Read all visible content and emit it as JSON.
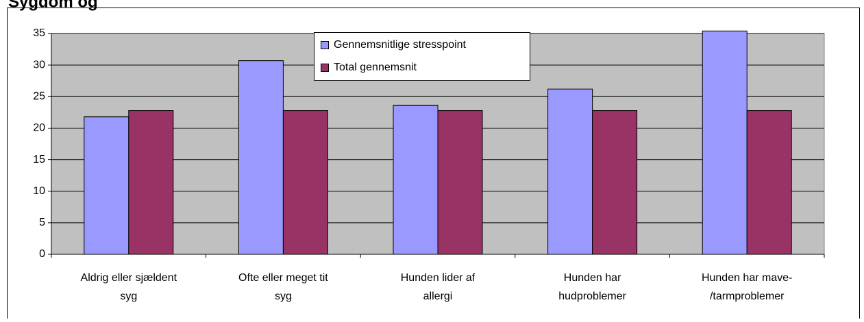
{
  "chart_data": {
    "type": "bar",
    "title": "Sygdom og",
    "categories": [
      [
        "Aldrig eller sjældent",
        "syg"
      ],
      [
        "Ofte eller meget tit",
        "syg"
      ],
      [
        "Hunden lider af",
        "allergi"
      ],
      [
        "Hunden har",
        "hudproblemer"
      ],
      [
        "Hunden har mave-",
        "/tarmproblemer"
      ]
    ],
    "series": [
      {
        "name": "Gennemsnitlige stresspoint",
        "color": "#9999ff",
        "values": [
          21.8,
          30.7,
          23.6,
          26.2,
          35.4
        ]
      },
      {
        "name": "Total gennemsnit",
        "color": "#993366",
        "values": [
          22.8,
          22.8,
          22.8,
          22.8,
          22.8
        ]
      }
    ],
    "ylim": [
      0,
      35
    ],
    "yticks": [
      0,
      5,
      10,
      15,
      20,
      25,
      30,
      35
    ],
    "grid": true,
    "legend": "top"
  }
}
